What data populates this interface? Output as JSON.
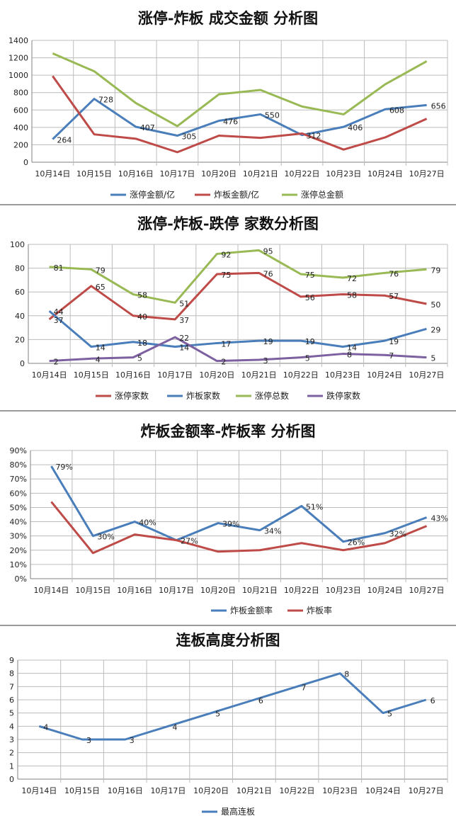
{
  "chart_data": [
    {
      "type": "line",
      "title": "涨停-炸板 成交金额 分析图",
      "categories": [
        "10月14日",
        "10月15日",
        "10月16日",
        "10月17日",
        "10月20日",
        "10月21日",
        "10月22日",
        "10月23日",
        "10月24日",
        "10月27日"
      ],
      "ylim": [
        0,
        1400
      ],
      "yticks": [
        "0",
        "200",
        "400",
        "600",
        "800",
        "1000",
        "1200",
        "1400"
      ],
      "grid": true,
      "legend": "bottom",
      "series": [
        {
          "name": "涨停金额/亿",
          "color": "#4a7ebb",
          "values": [
            264,
            728,
            407,
            305,
            476,
            550,
            312,
            406,
            608,
            656
          ],
          "labels": [
            "264",
            "728",
            "407",
            "305",
            "476",
            "550",
            "312",
            "406",
            "608",
            "656"
          ]
        },
        {
          "name": "炸板金额/亿",
          "color": "#be4b48",
          "values": [
            990,
            320,
            270,
            115,
            305,
            280,
            330,
            145,
            285,
            500
          ],
          "labels": []
        },
        {
          "name": "涨停总金额",
          "color": "#98b954",
          "values": [
            1250,
            1045,
            680,
            415,
            780,
            830,
            640,
            550,
            895,
            1160
          ],
          "labels": []
        }
      ]
    },
    {
      "type": "line",
      "title": "涨停-炸板-跌停 家数分析图",
      "categories": [
        "10月14日",
        "10月15日",
        "10月16日",
        "10月17日",
        "10月20日",
        "10月21日",
        "10月22日",
        "10月23日",
        "10月24日",
        "10月27日"
      ],
      "ylim": [
        0,
        100
      ],
      "yticks": [
        "0",
        "20",
        "40",
        "60",
        "80",
        "100"
      ],
      "grid": true,
      "legend": "bottom",
      "series": [
        {
          "name": "涨停家数",
          "color": "#be4b48",
          "values": [
            37,
            65,
            40,
            37,
            75,
            76,
            56,
            58,
            57,
            50
          ],
          "labels": [
            "37",
            "65",
            "40",
            "37",
            "75",
            "76",
            "56",
            "58",
            "57",
            "50"
          ]
        },
        {
          "name": "炸板家数",
          "color": "#4a7ebb",
          "values": [
            44,
            14,
            18,
            14,
            17,
            19,
            19,
            14,
            19,
            29
          ],
          "labels": [
            "44",
            "14",
            "18",
            "14",
            "17",
            "19",
            "19",
            "14",
            "19",
            "29"
          ]
        },
        {
          "name": "涨停总数",
          "color": "#98b954",
          "values": [
            81,
            79,
            58,
            51,
            92,
            95,
            75,
            72,
            76,
            79
          ],
          "labels": [
            "81",
            "79",
            "58",
            "51",
            "92",
            "95",
            "75",
            "72",
            "76",
            "79"
          ]
        },
        {
          "name": "跌停家数",
          "color": "#7d60a0",
          "values": [
            2,
            4,
            5,
            22,
            2,
            3,
            5,
            8,
            7,
            5
          ],
          "labels": [
            "2",
            "4",
            "5",
            "22",
            "2",
            "3",
            "5",
            "8",
            "7",
            "5"
          ]
        }
      ]
    },
    {
      "type": "line",
      "title": "炸板金额率-炸板率 分析图",
      "categories": [
        "10月14日",
        "10月15日",
        "10月16日",
        "10月17日",
        "10月20日",
        "10月21日",
        "10月22日",
        "10月23日",
        "10月24日",
        "10月27日"
      ],
      "ylim": [
        0,
        90
      ],
      "yticks": [
        "0%",
        "10%",
        "20%",
        "30%",
        "40%",
        "50%",
        "60%",
        "70%",
        "80%",
        "90%"
      ],
      "grid": true,
      "legend": "bottom",
      "series": [
        {
          "name": "炸板金额率",
          "color": "#4a7ebb",
          "values": [
            79,
            30,
            40,
            27,
            39,
            34,
            51,
            26,
            32,
            43
          ],
          "labels": [
            "79%",
            "30%",
            "40%",
            "27%",
            "39%",
            "34%",
            "51%",
            "26%",
            "32%",
            "43%"
          ]
        },
        {
          "name": "炸板率",
          "color": "#be4b48",
          "values": [
            54,
            18,
            31,
            27,
            19,
            20,
            25,
            20,
            25,
            37
          ],
          "labels": []
        }
      ]
    },
    {
      "type": "line",
      "title": "连板高度分析图",
      "categories": [
        "10月14日",
        "10月15日",
        "10月16日",
        "10月17日",
        "10月20日",
        "10月21日",
        "10月22日",
        "10月23日",
        "10月24日",
        "10月27日"
      ],
      "ylim": [
        0,
        9
      ],
      "yticks": [
        "0",
        "1",
        "2",
        "3",
        "4",
        "5",
        "6",
        "7",
        "8",
        "9"
      ],
      "grid": true,
      "legend": "bottom",
      "series": [
        {
          "name": "最高连板",
          "color": "#4a7ebb",
          "values": [
            4,
            3,
            3,
            4,
            5,
            6,
            7,
            8,
            5,
            6
          ],
          "labels": [
            "4",
            "3",
            "3",
            "4",
            "5",
            "6",
            "7",
            "8",
            "5",
            "6"
          ]
        }
      ]
    }
  ]
}
